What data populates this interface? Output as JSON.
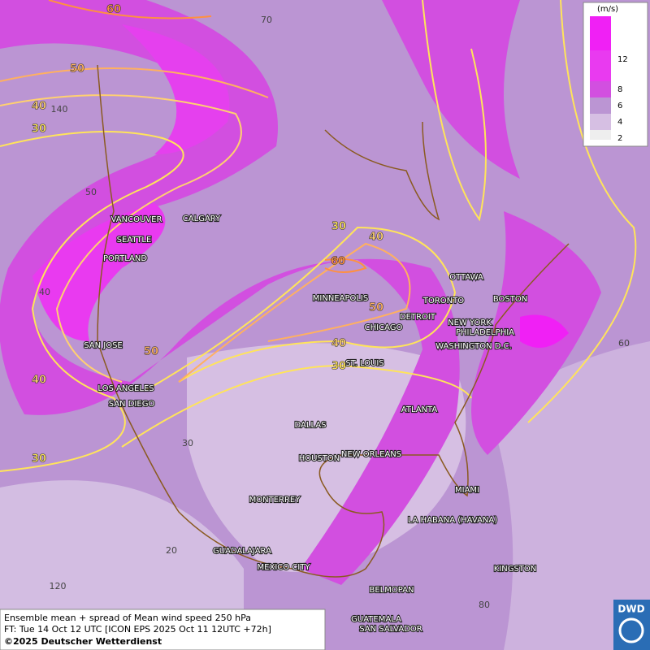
{
  "legend": {
    "unit": "(m/s)",
    "levels": [
      12,
      8,
      6,
      4,
      2
    ]
  },
  "cities": [
    "VANCOUVER",
    "CALGARY",
    "SEATTLE",
    "PORTLAND",
    "SAN JOSE",
    "LOS ANGELES",
    "SAN DIEGO",
    "MINNEAPOLIS",
    "DETROIT",
    "TORONTO",
    "OTTAWA",
    "BOSTON",
    "NEW YORK",
    "PHILADELPHIA",
    "WASHINGTON D.C.",
    "CHICAGO",
    "ST. LOUIS",
    "ATLANTA",
    "DALLAS",
    "HOUSTON",
    "NEW ORLEANS",
    "MIAMI",
    "MONTERREY",
    "LA HABANA (HAVANA)",
    "GUADALAJARA",
    "MEXICO CITY",
    "KINGSTON",
    "BELMOPAN",
    "GUATEMALA",
    "SAN SALVADOR"
  ],
  "contour_labels": [
    60,
    50,
    40,
    30,
    30,
    40,
    60,
    50,
    40,
    30,
    50,
    40,
    30
  ],
  "grid_labels": [
    "70",
    "140",
    "50",
    "40",
    "30",
    "20",
    "120",
    "80",
    "60"
  ],
  "footer": {
    "line1": "Ensemble mean + spread of Mean wind speed 250 hPa",
    "line2": "FT: Tue 14 Oct 12 UTC [ICON EPS 2025 Oct 11 12UTC +72h]",
    "line3": "©2025 Deutscher Wetterdienst"
  },
  "logo": "DWD"
}
